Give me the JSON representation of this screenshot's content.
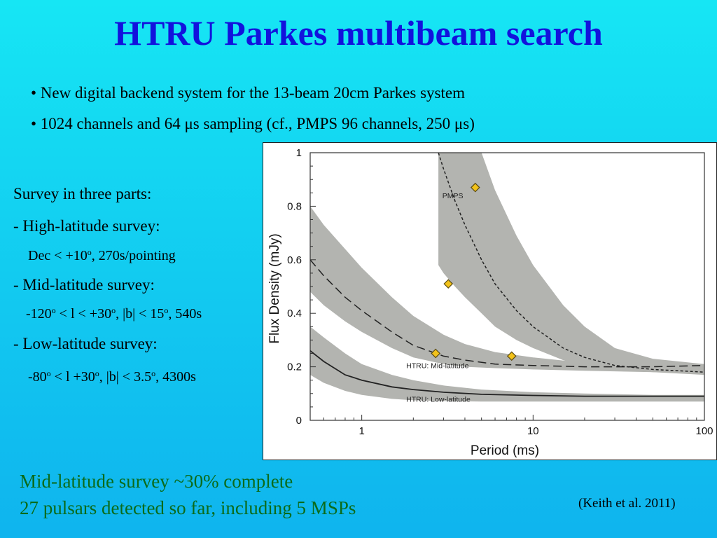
{
  "slide": {
    "title": "HTRU Parkes multibeam search",
    "bullets": [
      "• New digital backend system for the 13-beam 20cm Parkes system",
      "• 1024 channels and 64 μs sampling (cf., PMPS 96 channels, 250 μs)"
    ],
    "survey": {
      "heading": "Survey in three parts:",
      "high_label": "- High-latitude survey:",
      "high_pre": "Dec < +10",
      "high_sup": "o",
      "high_post": ", 270s/pointing",
      "mid_label": "- Mid-latitude survey:",
      "mid_a": "-120",
      "mid_sa": "o",
      "mid_b": " < l < +30",
      "mid_sb": "o",
      "mid_c": ", |b| < 15",
      "mid_sc": "o",
      "mid_d": ", 540s",
      "low_label": "- Low-latitude survey:",
      "low_a": "-80",
      "low_sa": "o",
      "low_b": " < l +30",
      "low_sb": "o",
      "low_c": ", |b| < 3.5",
      "low_sc": "o",
      "low_d": ", 4300s"
    },
    "bottom_line1": "Mid-latitude survey ~30% complete",
    "bottom_line2": "27 pulsars detected so far, including 5 MSPs",
    "citation": "(Keith et al. 2011)"
  },
  "chart_data": {
    "type": "line",
    "xlabel": "Period (ms)",
    "ylabel": "Flux Density (mJy)",
    "xscale": "log",
    "xlim": [
      0.5,
      100
    ],
    "ylim": [
      0,
      1
    ],
    "x_ticks": [
      1,
      10,
      100
    ],
    "x_tick_labels": [
      "1",
      "10",
      "100"
    ],
    "y_ticks": [
      0,
      0.2,
      0.4,
      0.6,
      0.8,
      1
    ],
    "y_tick_labels": [
      "0",
      "0.2",
      "0.4",
      "0.6",
      "0.8",
      "1"
    ],
    "series": [
      {
        "name": "PMPS",
        "style": "dotted",
        "x": [
          2.8,
          3,
          3.5,
          4,
          5,
          6,
          8,
          10,
          15,
          20,
          30,
          50,
          100
        ],
        "y": [
          1.0,
          0.94,
          0.82,
          0.73,
          0.6,
          0.51,
          0.41,
          0.35,
          0.27,
          0.235,
          0.205,
          0.19,
          0.18
        ],
        "band_upper": [
          null,
          null,
          null,
          null,
          1.0,
          0.86,
          0.69,
          0.58,
          0.43,
          0.35,
          0.27,
          0.23,
          0.21
        ],
        "band_lower": [
          0.58,
          0.55,
          0.5,
          0.46,
          0.4,
          0.35,
          0.3,
          0.27,
          0.225,
          0.2,
          0.19,
          0.18,
          0.17
        ]
      },
      {
        "name": "HTRU: Mid-latitude",
        "style": "dashed",
        "x": [
          0.5,
          0.6,
          0.8,
          1,
          1.5,
          2,
          3,
          4,
          6,
          10,
          20,
          50,
          100
        ],
        "y": [
          0.6,
          0.54,
          0.46,
          0.41,
          0.33,
          0.28,
          0.24,
          0.225,
          0.21,
          0.205,
          0.2,
          0.2,
          0.205
        ],
        "band_upper": [
          0.8,
          0.73,
          0.64,
          0.57,
          0.46,
          0.39,
          0.32,
          0.285,
          0.255,
          0.235,
          0.215,
          0.205,
          0.2
        ],
        "band_lower": [
          0.48,
          0.43,
          0.37,
          0.33,
          0.27,
          0.235,
          0.21,
          0.2,
          0.195,
          0.19,
          0.185,
          0.18,
          0.18
        ]
      },
      {
        "name": "HTRU: Low-latitude",
        "style": "solid",
        "x": [
          0.5,
          0.6,
          0.8,
          1,
          1.5,
          2,
          3,
          5,
          10,
          20,
          50,
          100
        ],
        "y": [
          0.26,
          0.22,
          0.17,
          0.15,
          0.125,
          0.115,
          0.105,
          0.097,
          0.093,
          0.09,
          0.09,
          0.09
        ],
        "band_upper": [
          0.35,
          0.31,
          0.25,
          0.21,
          0.17,
          0.15,
          0.13,
          0.115,
          0.105,
          0.1,
          0.095,
          0.095
        ],
        "band_lower": [
          0.17,
          0.14,
          0.11,
          0.095,
          0.08,
          0.075,
          0.072,
          0.07,
          0.07,
          0.07,
          0.07,
          0.07
        ]
      }
    ],
    "points": {
      "marker": "diamond",
      "x": [
        4.6,
        3.2,
        2.7,
        7.5
      ],
      "y": [
        0.87,
        0.51,
        0.25,
        0.24
      ]
    },
    "colors": {
      "band": "#b3b4b0",
      "marker_fill": "#f2c21a",
      "marker_edge": "#5a4a10",
      "line": "#222222"
    }
  }
}
